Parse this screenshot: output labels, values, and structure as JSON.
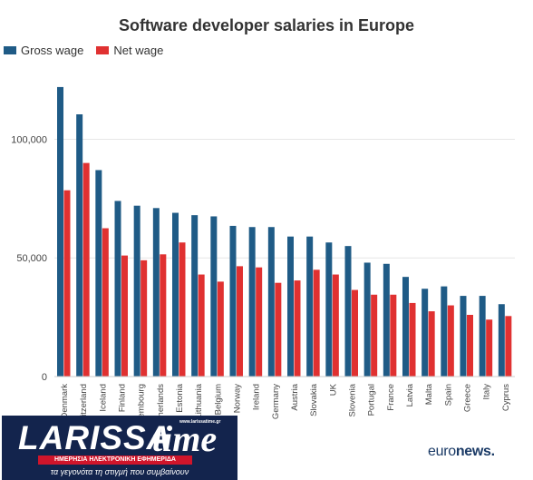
{
  "chart_data": {
    "type": "bar",
    "title": "Software developer salaries in Europe",
    "xlabel": "",
    "ylabel": "",
    "ylim": [
      0,
      130000
    ],
    "yticks": [
      "0",
      "50,000",
      "100,000"
    ],
    "yticks_values": [
      0,
      50000,
      100000
    ],
    "grid": true,
    "legend_position": "top-left",
    "categories": [
      "Denmark",
      "Switzerland",
      "Iceland",
      "Finland",
      "Luxembourg",
      "Netherlands",
      "Estonia",
      "Lithuania",
      "Belgium",
      "Norway",
      "Ireland",
      "Germany",
      "Austria",
      "Slovakia",
      "UK",
      "Slovenia",
      "Portugal",
      "France",
      "Latvia",
      "Malta",
      "Spain",
      "Greece",
      "Italy",
      "Cyprus"
    ],
    "series": [
      {
        "name": "Gross wage",
        "color": "#1f5b86",
        "values": [
          122000,
          110500,
          87000,
          74000,
          72000,
          71000,
          69000,
          68000,
          67500,
          63500,
          63000,
          63000,
          59000,
          59000,
          56500,
          55000,
          48000,
          47500,
          42000,
          37000,
          38000,
          34000,
          34000,
          30500
        ]
      },
      {
        "name": "Net wage",
        "color": "#e03131",
        "values": [
          78500,
          90000,
          62500,
          51000,
          49000,
          51500,
          56500,
          43000,
          40000,
          46500,
          46000,
          39500,
          40500,
          45000,
          43000,
          36500,
          34500,
          34500,
          31000,
          27500,
          30000,
          26000,
          24000,
          25500
        ]
      }
    ]
  },
  "logo": {
    "larissa_name": "LARISSA",
    "larissa_time": "time",
    "larissa_url": "www.larissatime.gr",
    "larissa_strip": "ΗΜΕΡΗΣΙΑ ΗΛΕΚΤΡΟΝΙΚΗ ΕΦΗΜΕΡΙΔΑ",
    "larissa_slogan": "τα γεγονότα τη στιγμή που συμβαίνουν",
    "euronews_light": "euro",
    "euronews_bold": "news."
  }
}
